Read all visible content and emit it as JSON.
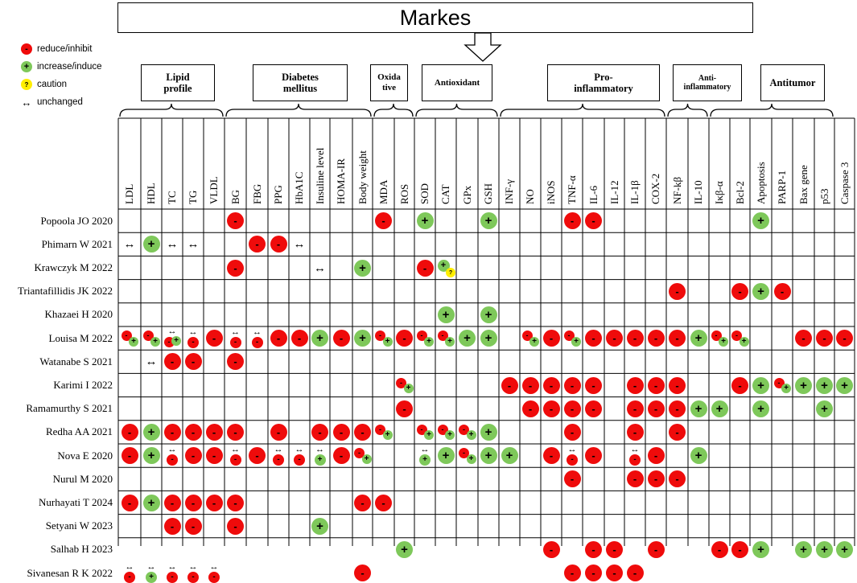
{
  "title": "Markes",
  "legend": [
    {
      "type": "reduce",
      "label": "reduce/inhibit",
      "color": "#ef0b0b",
      "glyph": "-"
    },
    {
      "type": "increase",
      "label": "increase/induce",
      "color": "#7ec85a",
      "glyph": "+"
    },
    {
      "type": "caution",
      "label": "caution",
      "color": "#ffee00",
      "glyph": "?"
    },
    {
      "type": "unchanged",
      "label": "unchanged",
      "glyph": "↔"
    }
  ],
  "groups": [
    {
      "label": "Lipid\nprofile",
      "from": 0,
      "to": 4
    },
    {
      "label": "Diabetes\nmellitus",
      "from": 5,
      "to": 11
    },
    {
      "label": "Oxida\ntive",
      "from": 12,
      "to": 13
    },
    {
      "label": "Antioxidant",
      "from": 14,
      "to": 17
    },
    {
      "label": "Pro-\ninflammatory",
      "from": 18,
      "to": 25
    },
    {
      "label": "Anti-\ninflammatory",
      "from": 26,
      "to": 27
    },
    {
      "label": "Antitumor",
      "from": 28,
      "to": 33
    }
  ],
  "columns": [
    "LDL",
    "HDL",
    "TC",
    "TG",
    "VLDL",
    "BG",
    "FBG",
    "PPG",
    "HbA1C",
    "Insuline level",
    "HOMA-IR",
    "Body weight",
    "MDA",
    "ROS",
    "SOD",
    "CAT",
    "GPx",
    "GSH",
    "INF-γ",
    "NO",
    "iNOS",
    "TNF-α",
    "IL-6",
    "IL-12",
    "IL-1β",
    "COX-2",
    "NF-kβ",
    "IL-10",
    "Iκβ-α",
    "Bcl-2",
    "Apoptosis",
    "PARP-1",
    "Bax gene",
    "p53",
    "Caspase 3"
  ],
  "rows": [
    {
      "study": "Popoola JO 2020",
      "cells": {
        "BG": "-",
        "MDA": "-",
        "SOD": "+",
        "GSH": "+",
        "TNF-α": "-",
        "IL-6": "-",
        "Apoptosis": "+"
      }
    },
    {
      "study": "Phimarn W 2021",
      "cells": {
        "LDL": "↔",
        "HDL": "+",
        "TC": "↔",
        "TG": "↔",
        "FBG": "-",
        "PPG": "-",
        "HbA1C": "↔"
      }
    },
    {
      "study": "Krawczyk M 2022",
      "cells": {
        "BG": "-",
        "Insuline level": "↔",
        "Body weight": "+",
        "SOD": "-",
        "CAT": "+?"
      }
    },
    {
      "study": "Triantafillidis JK 2022",
      "cells": {
        "NF-kβ": "-",
        "Bcl-2": "-",
        "Apoptosis": "+",
        "PARP-1": "-"
      }
    },
    {
      "study": "Khazaei H 2020",
      "cells": {
        "CAT": "+",
        "GSH": "+"
      }
    },
    {
      "study": "Louisa M 2022",
      "cells": {
        "LDL": "-+",
        "HDL": "-+",
        "TC": "↔-+",
        "TG": "↔-",
        "VLDL": "-",
        "BG": "↔-",
        "FBG": "↔-",
        "PPG": "-",
        "HbA1C": "-",
        "Insuline level": "+",
        "HOMA-IR": "-",
        "Body weight": "+",
        "MDA": "-+",
        "ROS": "-",
        "SOD": "-+",
        "CAT": "-+",
        "GPx": "+",
        "GSH": "+",
        "NO": "-+",
        "iNOS": "-",
        "TNF-α": "-+",
        "IL-6": "-",
        "IL-12": "-",
        "IL-1β": "-",
        "COX-2": "-",
        "NF-kβ": "-",
        "IL-10": "+",
        "Iκβ-α": "-+",
        "Bcl-2": "-+",
        "Bax gene": "-",
        "p53": "-",
        "Caspase 3": "-"
      }
    },
    {
      "study": "Watanabe S 2021",
      "cells": {
        "HDL": "↔",
        "TC": "-",
        "TG": "-",
        "BG": "-"
      }
    },
    {
      "study": "Karimi I 2022",
      "cells": {
        "ROS": "-+",
        "INF-γ": "-",
        "NO": "-",
        "iNOS": "-",
        "TNF-α": "-",
        "IL-6": "-",
        "IL-1β": "-",
        "COX-2": "-",
        "NF-kβ": "-",
        "Bcl-2": "-",
        "Apoptosis": "+",
        "PARP-1": "-+",
        "Bax gene": "+",
        "p53": "+",
        "Caspase 3": "+"
      }
    },
    {
      "study": "Ramamurthy S 2021",
      "cells": {
        "ROS": "-",
        "NO": "-",
        "iNOS": "-",
        "TNF-α": "-",
        "IL-6": "-",
        "IL-1β": "-",
        "COX-2": "-",
        "NF-kβ": "-",
        "IL-10": "+",
        "Iκβ-α": "+",
        "Apoptosis": "+",
        "p53": "+"
      }
    },
    {
      "study": "Redha AA 2021",
      "cells": {
        "LDL": "-",
        "HDL": "+",
        "TC": "-",
        "TG": "-",
        "VLDL": "-",
        "BG": "-",
        "PPG": "-",
        "Insuline level": "-",
        "HOMA-IR": "-",
        "Body weight": "-",
        "MDA": "-+",
        "SOD": "-+",
        "CAT": "-+",
        "GPx": "-+",
        "GSH": "+",
        "TNF-α": "-",
        "IL-1β": "-",
        "NF-kβ": "-"
      }
    },
    {
      "study": "Nova E 2020",
      "cells": {
        "LDL": "-",
        "HDL": "+",
        "TC": "↔-",
        "TG": "-",
        "VLDL": "-",
        "BG": "↔-",
        "FBG": "-",
        "PPG": "↔-",
        "HbA1C": "↔-",
        "Insuline level": "↔+",
        "HOMA-IR": "-",
        "Body weight": "-+",
        "SOD": "↔+",
        "CAT": "+",
        "GPx": "-+",
        "GSH": "+",
        "INF-γ": "+",
        "iNOS": "-",
        "TNF-α": "↔-",
        "IL-6": "-",
        "IL-1β": "↔-",
        "COX-2": "-",
        "IL-10": "+"
      }
    },
    {
      "study": "Nurul M 2020",
      "cells": {
        "TNF-α": "-",
        "IL-1β": "-",
        "COX-2": "-",
        "NF-kβ": "-"
      }
    },
    {
      "study": "Nurhayati T 2024",
      "cells": {
        "LDL": "-",
        "HDL": "+",
        "TC": "-",
        "TG": "-",
        "VLDL": "-",
        "BG": "-",
        "Body weight": "-",
        "MDA": "-"
      }
    },
    {
      "study": "Setyani W 2023",
      "cells": {
        "TC": "-",
        "TG": "-",
        "BG": "-",
        "Insuline level": "+"
      }
    },
    {
      "study": "Salhab H 2023",
      "cells": {
        "ROS": "+",
        "iNOS": "-",
        "IL-6": "-",
        "IL-12": "-",
        "COX-2": "-",
        "Iκβ-α": "-",
        "Bcl-2": "-",
        "Apoptosis": "+",
        "Bax gene": "+",
        "p53": "+",
        "Caspase 3": "+"
      }
    },
    {
      "study": "Sivanesan R K 2022",
      "cells": {
        "LDL": "↔-",
        "HDL": "↔+",
        "TC": "↔-",
        "TG": "↔-",
        "VLDL": "↔-",
        "Body weight": "-",
        "TNF-α": "-",
        "IL-6": "-",
        "IL-12": "-",
        "IL-1β": "-"
      }
    }
  ]
}
